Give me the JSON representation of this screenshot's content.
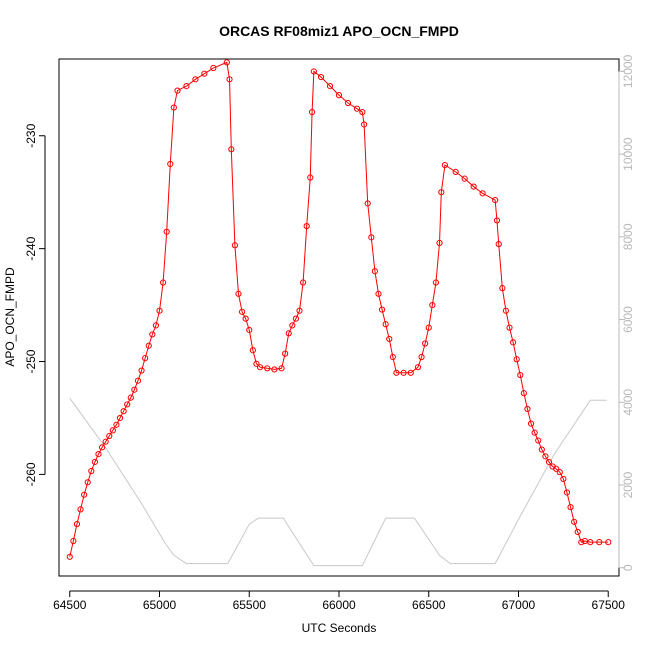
{
  "chart_data": {
    "type": "line",
    "title": "ORCAS RF08miz1 APO_OCN_FMPD",
    "xlabel": "UTC Seconds",
    "ylabel": "APO_OCN_FMPD",
    "xlim": [
      64440,
      67560
    ],
    "ylim": [
      -269,
      -223.2
    ],
    "y2lim": [
      -200,
      12300
    ],
    "x_ticks": [
      64500,
      65000,
      65500,
      66000,
      66500,
      67000,
      67500
    ],
    "y_ticks": [
      -260,
      -250,
      -240,
      -230
    ],
    "y2_ticks": [
      0,
      2000,
      4000,
      6000,
      8000,
      10000,
      12000
    ],
    "series": [
      {
        "color": "#ff0000",
        "marker": "open-circle",
        "axis": "left",
        "values": [
          [
            64500,
            -267.3
          ],
          [
            64520,
            -265.9
          ],
          [
            64540,
            -264.4
          ],
          [
            64560,
            -263.1
          ],
          [
            64580,
            -261.8
          ],
          [
            64600,
            -260.7
          ],
          [
            64620,
            -259.7
          ],
          [
            64640,
            -258.9
          ],
          [
            64660,
            -258.2
          ],
          [
            64680,
            -257.6
          ],
          [
            64700,
            -257.1
          ],
          [
            64720,
            -256.6
          ],
          [
            64740,
            -256.1
          ],
          [
            64760,
            -255.6
          ],
          [
            64780,
            -255.0
          ],
          [
            64800,
            -254.4
          ],
          [
            64820,
            -253.8
          ],
          [
            64840,
            -253.2
          ],
          [
            64860,
            -252.5
          ],
          [
            64880,
            -251.7
          ],
          [
            64900,
            -250.8
          ],
          [
            64920,
            -249.7
          ],
          [
            64940,
            -248.6
          ],
          [
            64960,
            -247.6
          ],
          [
            64980,
            -246.8
          ],
          [
            65000,
            -245.5
          ],
          [
            65020,
            -243.0
          ],
          [
            65040,
            -238.5
          ],
          [
            65060,
            -232.5
          ],
          [
            65080,
            -227.5
          ],
          [
            65100,
            -226.0
          ],
          [
            65150,
            -225.6
          ],
          [
            65200,
            -225.0
          ],
          [
            65250,
            -224.5
          ],
          [
            65300,
            -224.0
          ],
          [
            65375,
            -223.5
          ],
          [
            65390,
            -225.0
          ],
          [
            65400,
            -231.2
          ],
          [
            65420,
            -239.7
          ],
          [
            65440,
            -244.0
          ],
          [
            65460,
            -245.6
          ],
          [
            65480,
            -246.2
          ],
          [
            65500,
            -247.2
          ],
          [
            65520,
            -249.0
          ],
          [
            65540,
            -250.2
          ],
          [
            65560,
            -250.5
          ],
          [
            65600,
            -250.6
          ],
          [
            65640,
            -250.7
          ],
          [
            65680,
            -250.6
          ],
          [
            65700,
            -249.3
          ],
          [
            65720,
            -247.5
          ],
          [
            65740,
            -246.8
          ],
          [
            65760,
            -246.2
          ],
          [
            65780,
            -245.5
          ],
          [
            65800,
            -243.0
          ],
          [
            65820,
            -238.0
          ],
          [
            65840,
            -233.7
          ],
          [
            65850,
            -227.9
          ],
          [
            65860,
            -224.3
          ],
          [
            65900,
            -224.8
          ],
          [
            65950,
            -225.6
          ],
          [
            66000,
            -226.4
          ],
          [
            66050,
            -227.1
          ],
          [
            66100,
            -227.6
          ],
          [
            66130,
            -227.9
          ],
          [
            66140,
            -229.0
          ],
          [
            66160,
            -236.0
          ],
          [
            66180,
            -239.0
          ],
          [
            66200,
            -242.0
          ],
          [
            66220,
            -244.0
          ],
          [
            66240,
            -245.4
          ],
          [
            66260,
            -246.7
          ],
          [
            66280,
            -248.0
          ],
          [
            66300,
            -249.6
          ],
          [
            66320,
            -251.0
          ],
          [
            66360,
            -251.0
          ],
          [
            66400,
            -251.0
          ],
          [
            66440,
            -250.5
          ],
          [
            66460,
            -249.6
          ],
          [
            66480,
            -248.4
          ],
          [
            66500,
            -247.0
          ],
          [
            66520,
            -245.0
          ],
          [
            66540,
            -243.0
          ],
          [
            66560,
            -239.5
          ],
          [
            66570,
            -235.0
          ],
          [
            66590,
            -232.6
          ],
          [
            66650,
            -233.2
          ],
          [
            66700,
            -233.8
          ],
          [
            66750,
            -234.5
          ],
          [
            66800,
            -235.1
          ],
          [
            66870,
            -235.7
          ],
          [
            66880,
            -237.5
          ],
          [
            66890,
            -239.6
          ],
          [
            66910,
            -243.5
          ],
          [
            66930,
            -245.5
          ],
          [
            66950,
            -247.0
          ],
          [
            66970,
            -248.3
          ],
          [
            66990,
            -249.8
          ],
          [
            67010,
            -251.2
          ],
          [
            67030,
            -252.8
          ],
          [
            67050,
            -254.2
          ],
          [
            67070,
            -255.5
          ],
          [
            67090,
            -256.3
          ],
          [
            67110,
            -257.0
          ],
          [
            67130,
            -257.8
          ],
          [
            67150,
            -258.4
          ],
          [
            67170,
            -258.9
          ],
          [
            67190,
            -259.3
          ],
          [
            67210,
            -259.5
          ],
          [
            67230,
            -259.8
          ],
          [
            67250,
            -260.4
          ],
          [
            67270,
            -261.6
          ],
          [
            67290,
            -262.9
          ],
          [
            67310,
            -264.2
          ],
          [
            67330,
            -265.1
          ],
          [
            67350,
            -266.0
          ],
          [
            67370,
            -265.9
          ],
          [
            67400,
            -266.0
          ],
          [
            67450,
            -266.0
          ],
          [
            67500,
            -266.0
          ]
        ]
      },
      {
        "color": "#c8c8c8",
        "marker": "none",
        "axis": "right",
        "values": [
          [
            64500,
            4100
          ],
          [
            64700,
            2900
          ],
          [
            64900,
            1550
          ],
          [
            65030,
            600
          ],
          [
            65080,
            300
          ],
          [
            65150,
            100
          ],
          [
            65380,
            100
          ],
          [
            65500,
            1050
          ],
          [
            65550,
            1200
          ],
          [
            65690,
            1200
          ],
          [
            65800,
            450
          ],
          [
            65860,
            50
          ],
          [
            66130,
            50
          ],
          [
            66260,
            1200
          ],
          [
            66420,
            1200
          ],
          [
            66560,
            300
          ],
          [
            66620,
            100
          ],
          [
            66870,
            100
          ],
          [
            67010,
            1250
          ],
          [
            67200,
            2750
          ],
          [
            67400,
            4050
          ],
          [
            67490,
            4050
          ]
        ]
      }
    ]
  }
}
